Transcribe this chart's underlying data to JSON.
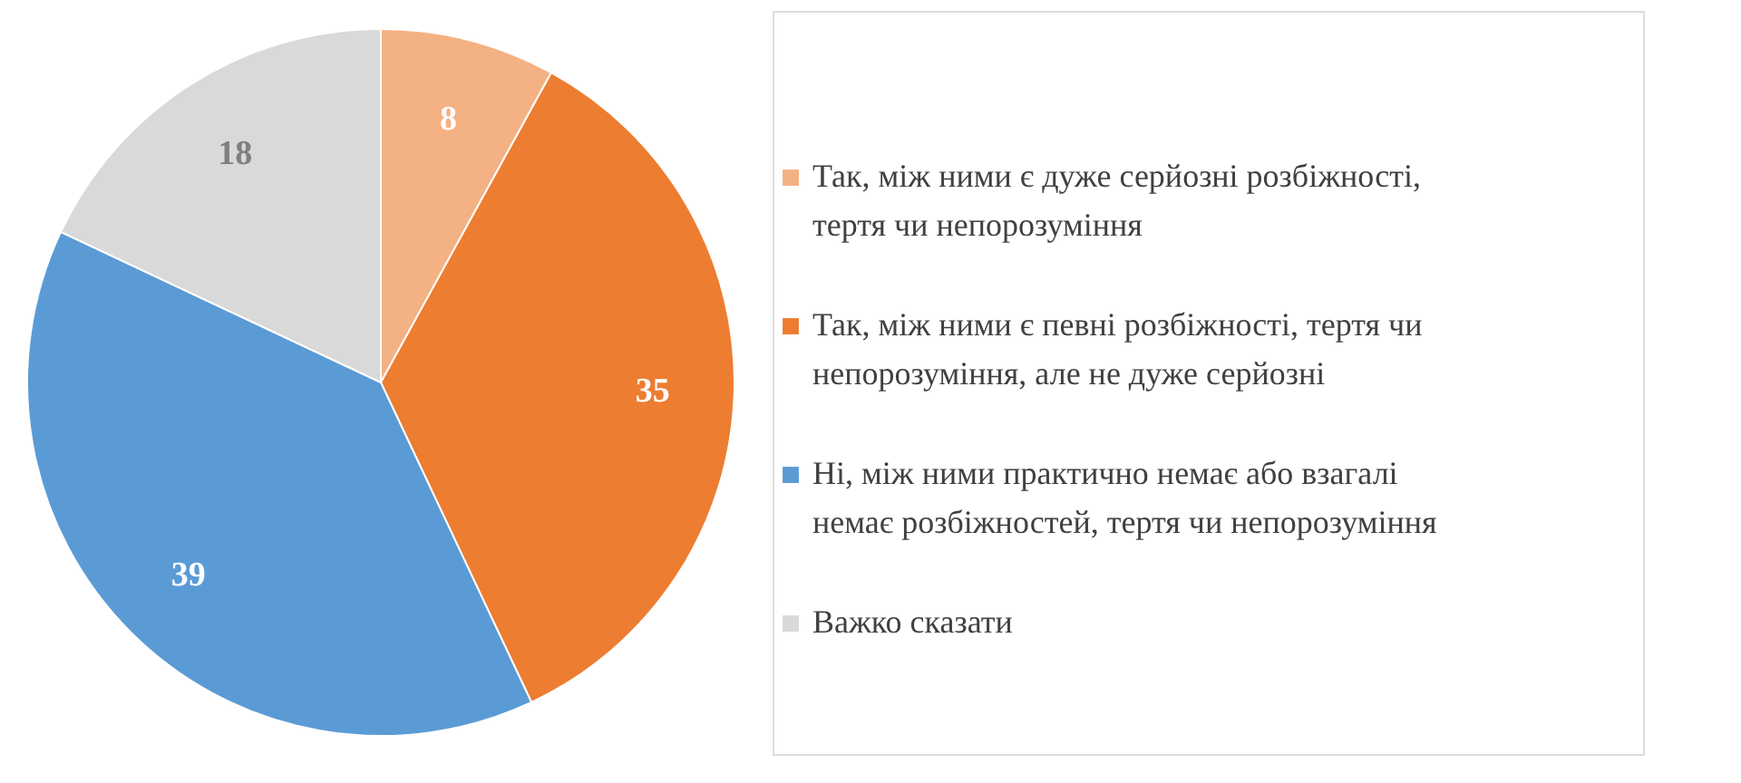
{
  "chart_data": {
    "type": "pie",
    "categories": [
      "Так, між ними є дуже серйозні розбіжності, тертя чи непорозуміння",
      "Так, між ними є певні розбіжності, тертя чи непорозуміння, але не дуже серйозні",
      "Ні, між ними практично немає або взагалі немає розбіжностей, тертя чи непорозуміння",
      "Важко сказати"
    ],
    "values": [
      8,
      35,
      39,
      18
    ],
    "colors": [
      "#f4b183",
      "#ed7d31",
      "#5b9bd5",
      "#d9d9d9"
    ],
    "data_labels": true,
    "legend": "right"
  }
}
